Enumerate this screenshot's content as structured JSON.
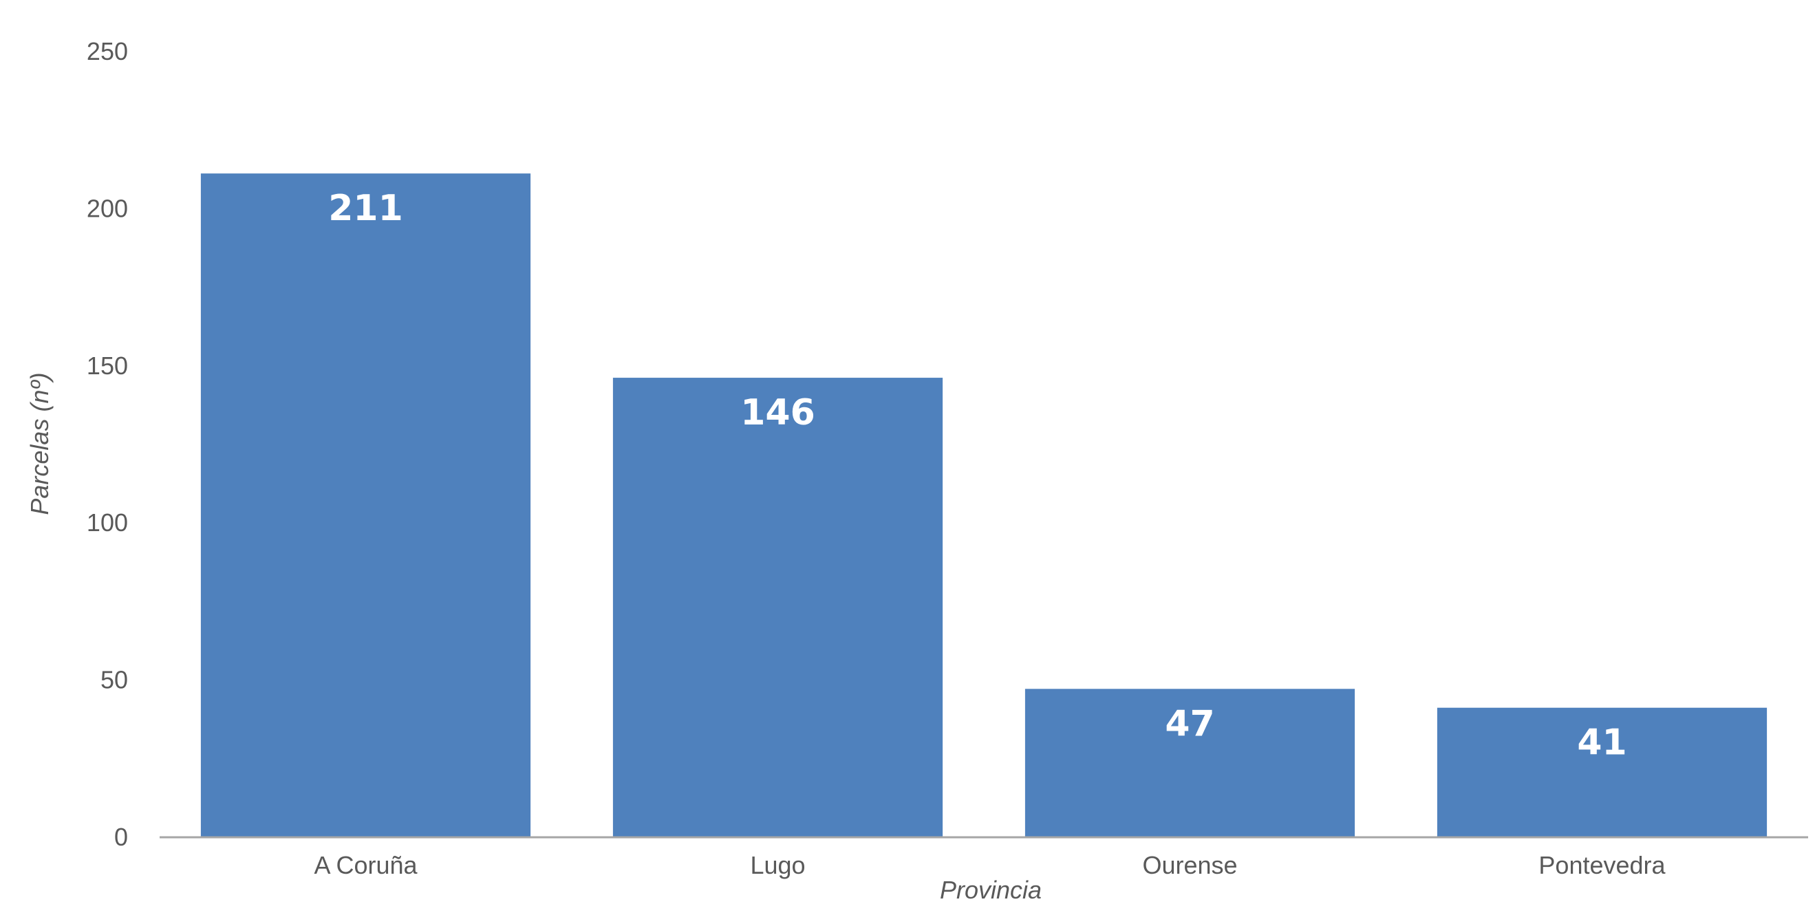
{
  "chart_data": {
    "type": "bar",
    "categories": [
      "A Coruña",
      "Lugo",
      "Ourense",
      "Pontevedra"
    ],
    "values": [
      211,
      146,
      47,
      41
    ],
    "data_labels": [
      "211",
      "146",
      "47",
      "41"
    ],
    "title": "",
    "xlabel": "Provincia",
    "ylabel": "Parcelas (nº)",
    "ylim": [
      0,
      250
    ],
    "yticks": [
      0,
      50,
      100,
      150,
      200,
      250
    ],
    "ytick_labels": [
      "0",
      "50",
      "100",
      "150",
      "200",
      "250"
    ],
    "grid": false,
    "legend": "none",
    "bar_color": "#4f81bd",
    "axis_color": "#a6a6a6",
    "text_color": "#595959"
  }
}
